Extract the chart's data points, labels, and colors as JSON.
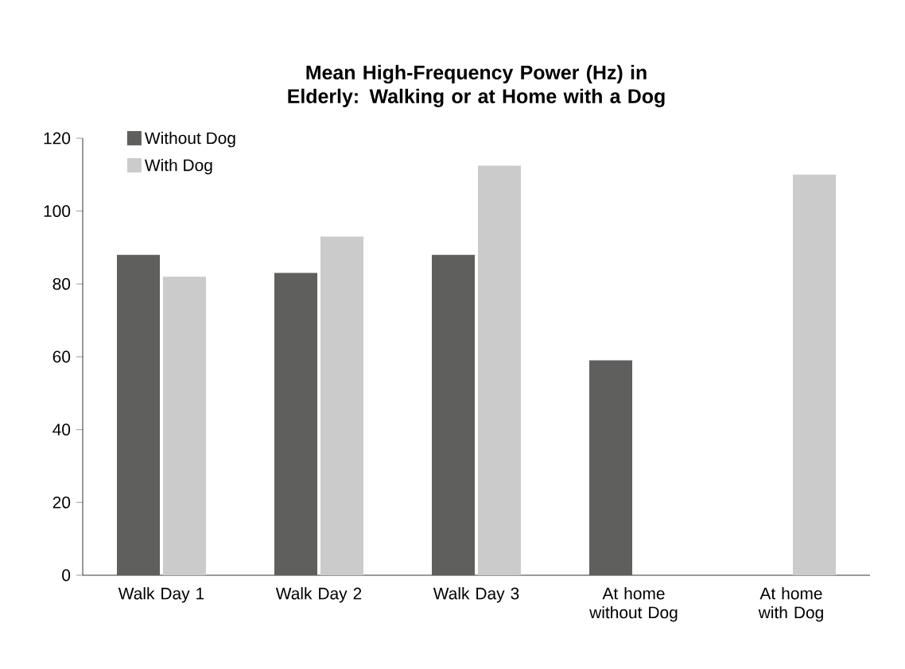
{
  "chart_data": {
    "type": "bar",
    "title": "Mean High-Frequency Power (Hz) in Elderly: Walking or at Home with a Dog",
    "categories": [
      "Walk Day 1",
      "Walk Day 2",
      "Walk Day 3",
      "At home without Dog",
      "At home with Dog"
    ],
    "series": [
      {
        "name": "Without Dog",
        "color": "#5f5f5d",
        "values": [
          88,
          83,
          88,
          59,
          null
        ]
      },
      {
        "name": "With Dog",
        "color": "#cbcbcb",
        "values": [
          82,
          93,
          112.5,
          null,
          110
        ]
      }
    ],
    "ylim": [
      0,
      120
    ],
    "yticks": [
      0,
      20,
      40,
      60,
      80,
      100,
      120
    ],
    "grid": false,
    "legend": "top left"
  }
}
